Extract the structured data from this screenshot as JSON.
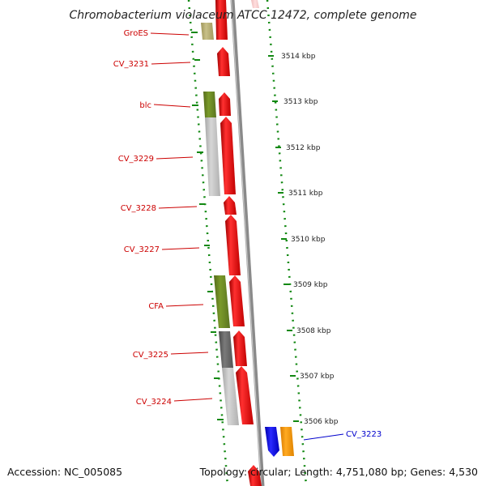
{
  "title": "Chromobacterium violaceum ATCC 12472, complete genome",
  "footer": {
    "accession": "Accession: NC_005085",
    "topology": "Topology: circular; Length: 4,751,080 bp; Genes: 4,530"
  },
  "colors": {
    "forward_gene": "#ee0000",
    "reverse_gene_blue": "#1010dd",
    "reverse_gene_orange": "#ff9900",
    "label_red": "#cc0000",
    "label_blue": "#0000cc",
    "backbone": "#888888",
    "dotted_ring": "#118811",
    "cds_olive": "#6b8e23",
    "cds_khaki": "#b5ad6e",
    "cds_lightgray": "#c4c4c4",
    "cds_darkgray": "#666666"
  },
  "gene_labels": [
    {
      "text": "GroES",
      "color": "red"
    },
    {
      "text": "CV_3231",
      "color": "red"
    },
    {
      "text": "blc",
      "color": "red"
    },
    {
      "text": "CV_3229",
      "color": "red"
    },
    {
      "text": "CV_3228",
      "color": "red"
    },
    {
      "text": "CV_3227",
      "color": "red"
    },
    {
      "text": "CFA",
      "color": "red"
    },
    {
      "text": "CV_3225",
      "color": "red"
    },
    {
      "text": "CV_3224",
      "color": "red"
    },
    {
      "text": "CV_3223",
      "color": "blue"
    }
  ],
  "kbp_labels": [
    "3514 kbp",
    "3513 kbp",
    "3512 kbp",
    "3511 kbp",
    "3510 kbp",
    "3509 kbp",
    "3508 kbp",
    "3507 kbp",
    "3506 kbp"
  ]
}
